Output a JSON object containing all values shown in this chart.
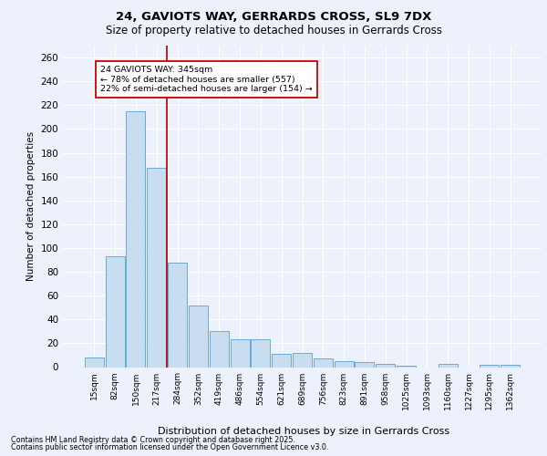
{
  "title_line1": "24, GAVIOTS WAY, GERRARDS CROSS, SL9 7DX",
  "title_line2": "Size of property relative to detached houses in Gerrards Cross",
  "xlabel": "Distribution of detached houses by size in Gerrards Cross",
  "ylabel": "Number of detached properties",
  "categories": [
    "15sqm",
    "82sqm",
    "150sqm",
    "217sqm",
    "284sqm",
    "352sqm",
    "419sqm",
    "486sqm",
    "554sqm",
    "621sqm",
    "689sqm",
    "756sqm",
    "823sqm",
    "891sqm",
    "958sqm",
    "1025sqm",
    "1093sqm",
    "1160sqm",
    "1227sqm",
    "1295sqm",
    "1362sqm"
  ],
  "values": [
    8,
    93,
    215,
    167,
    88,
    52,
    30,
    23,
    23,
    11,
    12,
    7,
    5,
    4,
    3,
    1,
    0,
    3,
    0,
    2,
    2
  ],
  "bar_color": "#c9ddf0",
  "bar_edge_color": "#6aaad4",
  "reference_line_color": "#aa0000",
  "annotation_text": "24 GAVIOTS WAY: 345sqm\n← 78% of detached houses are smaller (557)\n22% of semi-detached houses are larger (154) →",
  "annotation_box_color": "#cc0000",
  "ylim": [
    0,
    270
  ],
  "yticks": [
    0,
    20,
    40,
    60,
    80,
    100,
    120,
    140,
    160,
    180,
    200,
    220,
    240,
    260
  ],
  "footer_line1": "Contains HM Land Registry data © Crown copyright and database right 2025.",
  "footer_line2": "Contains public sector information licensed under the Open Government Licence v3.0.",
  "background_color": "#edf1fb",
  "grid_color": "#ffffff"
}
